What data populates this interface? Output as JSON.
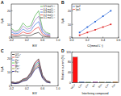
{
  "chart_data": [
    {
      "type": "line",
      "title": "A",
      "x_label": "E/V",
      "y_label": "I/μA",
      "x": [
        -0.2,
        -0.1,
        0,
        0.1,
        0.2,
        0.3,
        0.4,
        0.5,
        0.6,
        0.7,
        0.8
      ],
      "series": [
        {
          "name": "0.5 mol L⁻¹",
          "color": "#2ca02c",
          "values": [
            7,
            5,
            6,
            11,
            8,
            9,
            16,
            20,
            7,
            4,
            3
          ]
        },
        {
          "name": "0.4 mol L⁻¹",
          "color": "#9467bd",
          "values": [
            5.6,
            4,
            4.8,
            8.8,
            6.4,
            7.2,
            12.8,
            16,
            5.6,
            3.2,
            2.4
          ]
        },
        {
          "name": "0.3 mol L⁻¹",
          "color": "#1f5fd6",
          "values": [
            4.2,
            3,
            3.6,
            6.6,
            4.8,
            5.4,
            9.6,
            12,
            4.2,
            2.4,
            1.8
          ]
        },
        {
          "name": "0.2 mol L⁻¹",
          "color": "#e02020",
          "values": [
            2.8,
            2,
            2.4,
            4.4,
            3.2,
            3.6,
            6.4,
            8,
            2.8,
            1.6,
            1.2
          ]
        },
        {
          "name": "0.1 mol L⁻¹",
          "color": "#111111",
          "values": [
            1.4,
            1,
            1.2,
            2.2,
            1.6,
            1.8,
            3.2,
            4,
            1.4,
            0.8,
            0.6
          ]
        }
      ],
      "xlim": [
        -0.2,
        1.0
      ],
      "xticks": [
        -0.2,
        0.2,
        0.6,
        {
          "value": 1.0,
          "label": "1.0"
        }
      ],
      "ylim": [
        0,
        25
      ],
      "yticks": [
        0,
        10,
        20
      ],
      "grid": false,
      "legend": "top-right"
    },
    {
      "type": "line",
      "title": "B",
      "x_label": "C/(mmol L⁻¹)",
      "y_label": "I/μA",
      "x": [
        0.1,
        0.2,
        0.3,
        0.4,
        0.5
      ],
      "series": [
        {
          "name": "Ipa2",
          "color": "#1f5fd6",
          "values": [
            4,
            8,
            12,
            16,
            20
          ]
        },
        {
          "name": "Ipa1",
          "color": "#e02020",
          "values": [
            2,
            4,
            6,
            8,
            10
          ]
        }
      ],
      "xlim": [
        0,
        0.6
      ],
      "xticks": [
        {
          "value": 0,
          "label": "0.0"
        },
        0.2,
        0.4,
        0.6
      ],
      "ylim": [
        0,
        25
      ],
      "yticks": [
        0,
        10,
        20
      ],
      "marker": "square",
      "line_style": "solid",
      "grid": false,
      "legend": "top-left"
    },
    {
      "type": "line",
      "title": "C",
      "x_label": "E/V",
      "y_label": "I/μA",
      "x": [
        -0.2,
        -0.1,
        0,
        0.1,
        0.2,
        0.3,
        0.4,
        0.5,
        0.6,
        0.7,
        0.8
      ],
      "series": [
        {
          "name": "UO₂²⁺",
          "color": "#111111",
          "values": [
            3,
            2.4,
            3,
            5,
            6,
            10,
            17,
            20,
            8,
            4,
            3
          ]
        },
        {
          "name": "Cu²⁺",
          "color": "#e02020",
          "values": [
            2.9,
            2.3,
            2.9,
            4.8,
            5.7,
            9.5,
            16.2,
            19,
            7.6,
            3.8,
            2.9
          ]
        },
        {
          "name": "Zn²⁺",
          "color": "#1f5fd6",
          "values": [
            2.7,
            2.2,
            2.7,
            4.5,
            5.4,
            9,
            15.3,
            18,
            7.2,
            3.6,
            2.7
          ]
        },
        {
          "name": "Ni²⁺",
          "color": "#22c022",
          "values": [
            2.6,
            2,
            2.6,
            4.3,
            5.1,
            8.5,
            14.5,
            17,
            6.8,
            3.4,
            2.6
          ]
        },
        {
          "name": "Mn²⁺",
          "color": "#d020d0",
          "values": [
            2.4,
            1.9,
            2.4,
            4,
            4.8,
            8,
            13.6,
            16,
            6.4,
            3.2,
            2.4
          ]
        },
        {
          "name": "Co²⁺",
          "color": "#808000",
          "values": [
            2.3,
            1.8,
            2.3,
            3.8,
            4.5,
            7.5,
            12.8,
            15,
            6,
            3,
            2.3
          ]
        },
        {
          "name": "Fe³⁺",
          "color": "#000080",
          "values": [
            2.1,
            1.7,
            2.1,
            3.5,
            4.2,
            7,
            11.9,
            14,
            5.6,
            2.8,
            2.1
          ]
        }
      ],
      "xlim": [
        -0.2,
        1.0
      ],
      "xticks": [
        -0.2,
        0.2,
        0.6,
        {
          "value": 1.0,
          "label": "1.0"
        }
      ],
      "ylim": [
        0,
        25
      ],
      "yticks": [
        0,
        10,
        20
      ],
      "grid": false,
      "legend": "top-left"
    },
    {
      "type": "bar",
      "title": "D",
      "x_label": "Interfering compound",
      "y_label": "Relative current (%)",
      "categories": [
        "UO₂²⁺",
        "Cu²⁺",
        "Zn²⁺",
        "Ni²⁺",
        "Mn²⁺",
        "Co²⁺",
        "Fe³⁺"
      ],
      "values": [
        100,
        3,
        2,
        3,
        2,
        2,
        3
      ],
      "colors": [
        "#ff1010",
        "#1f5fd6",
        "#22c022",
        "#d020d0",
        "#808000",
        "#00a0a0",
        "#ff8000"
      ],
      "ylim": [
        0,
        120
      ],
      "yticks": [
        0,
        40,
        80,
        120
      ],
      "grid": false
    }
  ]
}
